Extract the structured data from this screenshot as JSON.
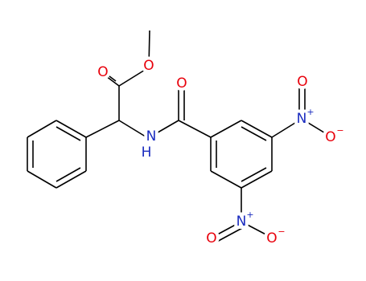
{
  "atoms": [
    {
      "label": "O"
    },
    {
      "label": "O"
    },
    {
      "label": "O"
    },
    {
      "label": "N",
      "h": "H"
    },
    {
      "label": "O"
    },
    {
      "label": "N",
      "charge": "+"
    },
    {
      "label": "O",
      "charge": "−"
    },
    {
      "label": "N",
      "charge": "+"
    },
    {
      "label": "O"
    },
    {
      "label": "O",
      "charge": "−"
    }
  ]
}
